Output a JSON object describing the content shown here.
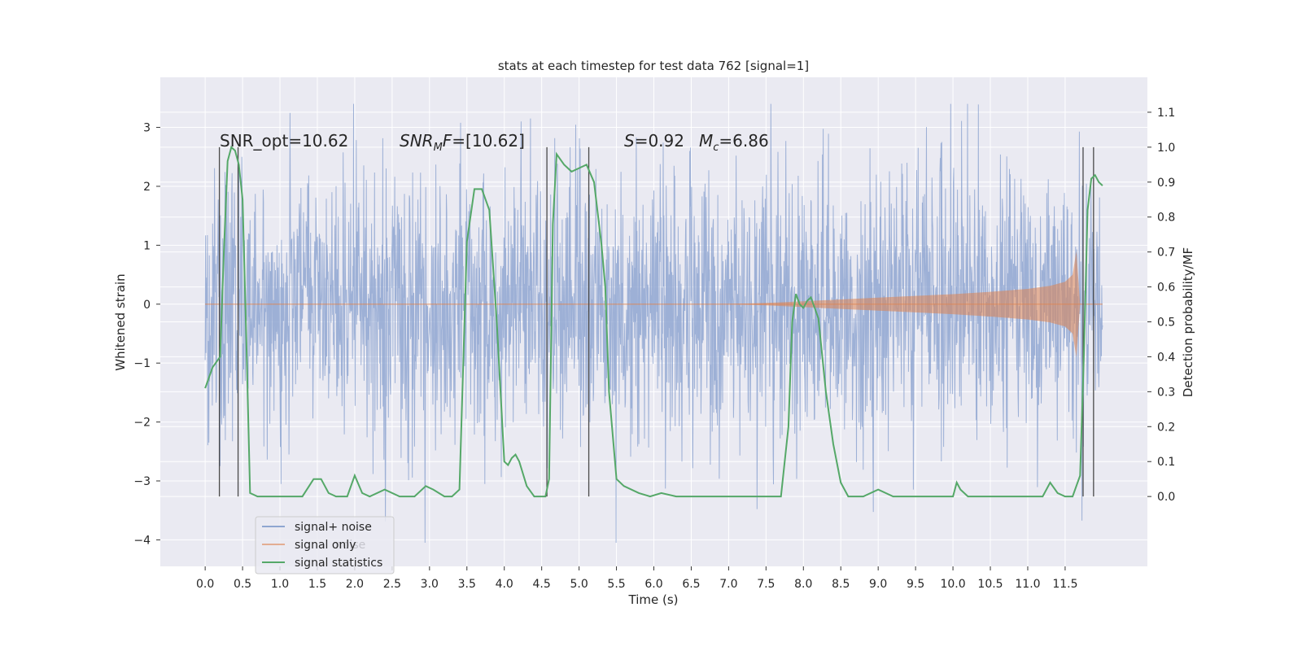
{
  "chart_data": {
    "type": "line",
    "title": "stats at each timestep for test data 762 [signal=1]",
    "xlabel": "Time (s)",
    "ylabel": "Whitened strain",
    "ylabel_right": "Detection probability/MF",
    "x_ticks": [
      "0.0",
      "0.5",
      "1.0",
      "1.5",
      "2.0",
      "2.5",
      "3.0",
      "3.5",
      "4.0",
      "4.5",
      "5.0",
      "5.5",
      "6.0",
      "6.5",
      "7.0",
      "7.5",
      "8.0",
      "8.5",
      "9.0",
      "9.5",
      "10.0",
      "10.5",
      "11.0",
      "11.5"
    ],
    "y_ticks_left": [
      "3",
      "2",
      "1",
      "0",
      "−1",
      "−2",
      "−3",
      "−4"
    ],
    "y_ticks_right": [
      "1.1",
      "1.0",
      "0.9",
      "0.8",
      "0.7",
      "0.6",
      "0.5",
      "0.4",
      "0.3",
      "0.2",
      "0.1",
      "0.0"
    ],
    "xlim": [
      -0.6,
      12.6
    ],
    "ylim_left": [
      -4.45,
      3.85
    ],
    "ylim_right": [
      -0.2,
      1.2
    ],
    "grid": true,
    "legend_position": "lower-left",
    "annotations": {
      "snr_opt": "SNR_opt=10.62",
      "snr_mf": "=[10.62]",
      "s_val": "=0.92",
      "mc_val": "=6.86"
    },
    "series": [
      {
        "name": "signal+ noise",
        "color": "#8fa6d1",
        "axis": "left",
        "description_range": [
          -2.4,
          2.4
        ],
        "x_range": [
          0.0,
          12.0
        ]
      },
      {
        "name": "signal only",
        "color": "#dd8452",
        "axis": "left",
        "envelope": {
          "x": [
            0.0,
            7.0,
            7.5,
            8.0,
            8.5,
            9.0,
            9.5,
            10.0,
            10.5,
            11.0,
            11.3,
            11.5,
            11.6,
            11.65,
            11.7,
            12.0
          ],
          "amp": [
            0.0,
            0.0,
            0.02,
            0.05,
            0.08,
            0.11,
            0.14,
            0.17,
            0.21,
            0.26,
            0.31,
            0.38,
            0.5,
            0.9,
            0.0,
            0.0
          ]
        }
      },
      {
        "name": "signal statistics",
        "color": "#55a868",
        "axis": "right",
        "x": [
          0.0,
          0.1,
          0.2,
          0.25,
          0.3,
          0.35,
          0.4,
          0.45,
          0.5,
          0.55,
          0.6,
          0.7,
          1.0,
          1.3,
          1.45,
          1.55,
          1.65,
          1.75,
          1.9,
          2.0,
          2.1,
          2.2,
          2.4,
          2.6,
          2.8,
          2.95,
          3.05,
          3.2,
          3.3,
          3.4,
          3.5,
          3.6,
          3.7,
          3.8,
          3.9,
          4.0,
          4.05,
          4.1,
          4.15,
          4.2,
          4.3,
          4.4,
          4.5,
          4.55,
          4.6,
          4.65,
          4.7,
          4.8,
          4.9,
          5.0,
          5.1,
          5.2,
          5.3,
          5.35,
          5.4,
          5.5,
          5.6,
          5.8,
          5.95,
          6.1,
          6.3,
          6.5,
          7.0,
          7.5,
          7.7,
          7.8,
          7.85,
          7.9,
          7.95,
          8.0,
          8.05,
          8.1,
          8.2,
          8.3,
          8.4,
          8.5,
          8.6,
          8.8,
          9.0,
          9.2,
          9.5,
          10.0,
          10.05,
          10.1,
          10.2,
          10.5,
          11.0,
          11.2,
          11.3,
          11.4,
          11.5,
          11.6,
          11.7,
          11.75,
          11.8,
          11.85,
          11.9,
          11.95,
          12.0
        ],
        "y": [
          0.31,
          0.37,
          0.4,
          0.7,
          0.96,
          1.0,
          0.99,
          0.95,
          0.85,
          0.45,
          0.01,
          0.0,
          0.0,
          0.0,
          0.05,
          0.05,
          0.01,
          0.0,
          0.0,
          0.06,
          0.01,
          0.0,
          0.02,
          0.0,
          0.0,
          0.03,
          0.02,
          0.0,
          0.0,
          0.02,
          0.73,
          0.88,
          0.88,
          0.82,
          0.5,
          0.1,
          0.09,
          0.11,
          0.12,
          0.1,
          0.03,
          0.0,
          0.0,
          0.0,
          0.05,
          0.78,
          0.98,
          0.95,
          0.93,
          0.94,
          0.95,
          0.9,
          0.72,
          0.6,
          0.3,
          0.05,
          0.03,
          0.01,
          0.0,
          0.01,
          0.0,
          0.0,
          0.0,
          0.0,
          0.0,
          0.2,
          0.5,
          0.58,
          0.55,
          0.54,
          0.56,
          0.57,
          0.51,
          0.3,
          0.15,
          0.04,
          0.0,
          0.0,
          0.02,
          0.0,
          0.0,
          0.0,
          0.04,
          0.02,
          0.0,
          0.0,
          0.0,
          0.0,
          0.04,
          0.01,
          0.0,
          0.0,
          0.06,
          0.4,
          0.82,
          0.91,
          0.92,
          0.9,
          0.89
        ]
      }
    ],
    "vertical_lines": {
      "color": "#4a4a4a",
      "x": [
        0.19,
        0.44,
        4.57,
        5.13,
        11.74,
        11.88
      ]
    },
    "legend": [
      "signal+ noise",
      "signal only",
      "signal statistics"
    ],
    "legend_ghost_text": "noise"
  }
}
